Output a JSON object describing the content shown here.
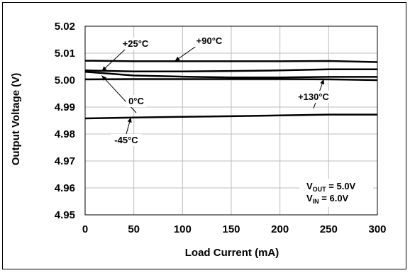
{
  "chart_data": {
    "type": "line",
    "xlabel": "Load Current (mA)",
    "ylabel": "Output Voltage (V)",
    "xlim": [
      0,
      300
    ],
    "ylim": [
      4.95,
      5.02
    ],
    "x_ticks": [
      "0",
      "50",
      "100",
      "150",
      "200",
      "250",
      "300"
    ],
    "y_ticks": [
      "4.95",
      "4.96",
      "4.97",
      "4.98",
      "4.99",
      "5.00",
      "5.01",
      "5.02"
    ],
    "grid": true,
    "x": [
      0,
      50,
      100,
      150,
      200,
      250,
      300
    ],
    "series": [
      {
        "name": "+90°C",
        "values": [
          5.0072,
          5.007,
          5.007,
          5.007,
          5.007,
          5.0071,
          5.0067
        ]
      },
      {
        "name": "+25°C",
        "values": [
          5.0036,
          5.0032,
          5.0032,
          5.0034,
          5.0036,
          5.004,
          5.004
        ]
      },
      {
        "name": "0°C",
        "values": [
          5.0031,
          5.0017,
          5.0013,
          5.001,
          5.001,
          5.0012,
          5.0012
        ]
      },
      {
        "name": "+130°C",
        "values": [
          5.0003,
          5.0004,
          5.0004,
          5.0004,
          5.0004,
          5.0003,
          5.0
        ]
      },
      {
        "name": "-45°C",
        "values": [
          4.9858,
          4.9861,
          4.9864,
          4.9866,
          4.9869,
          4.9872,
          4.9872
        ]
      }
    ],
    "annotations": [
      {
        "text": "+25°C",
        "series": 1
      },
      {
        "text": "+90°C",
        "series": 0
      },
      {
        "text": "0°C",
        "series": 2
      },
      {
        "text": "+130°C",
        "series": 3
      },
      {
        "text": "-45°C",
        "series": 4
      }
    ],
    "conditions": [
      {
        "main": "V",
        "sub": "OUT",
        "rest": " = 5.0V"
      },
      {
        "main": "V",
        "sub": "IN",
        "rest": " = 6.0V"
      }
    ]
  }
}
